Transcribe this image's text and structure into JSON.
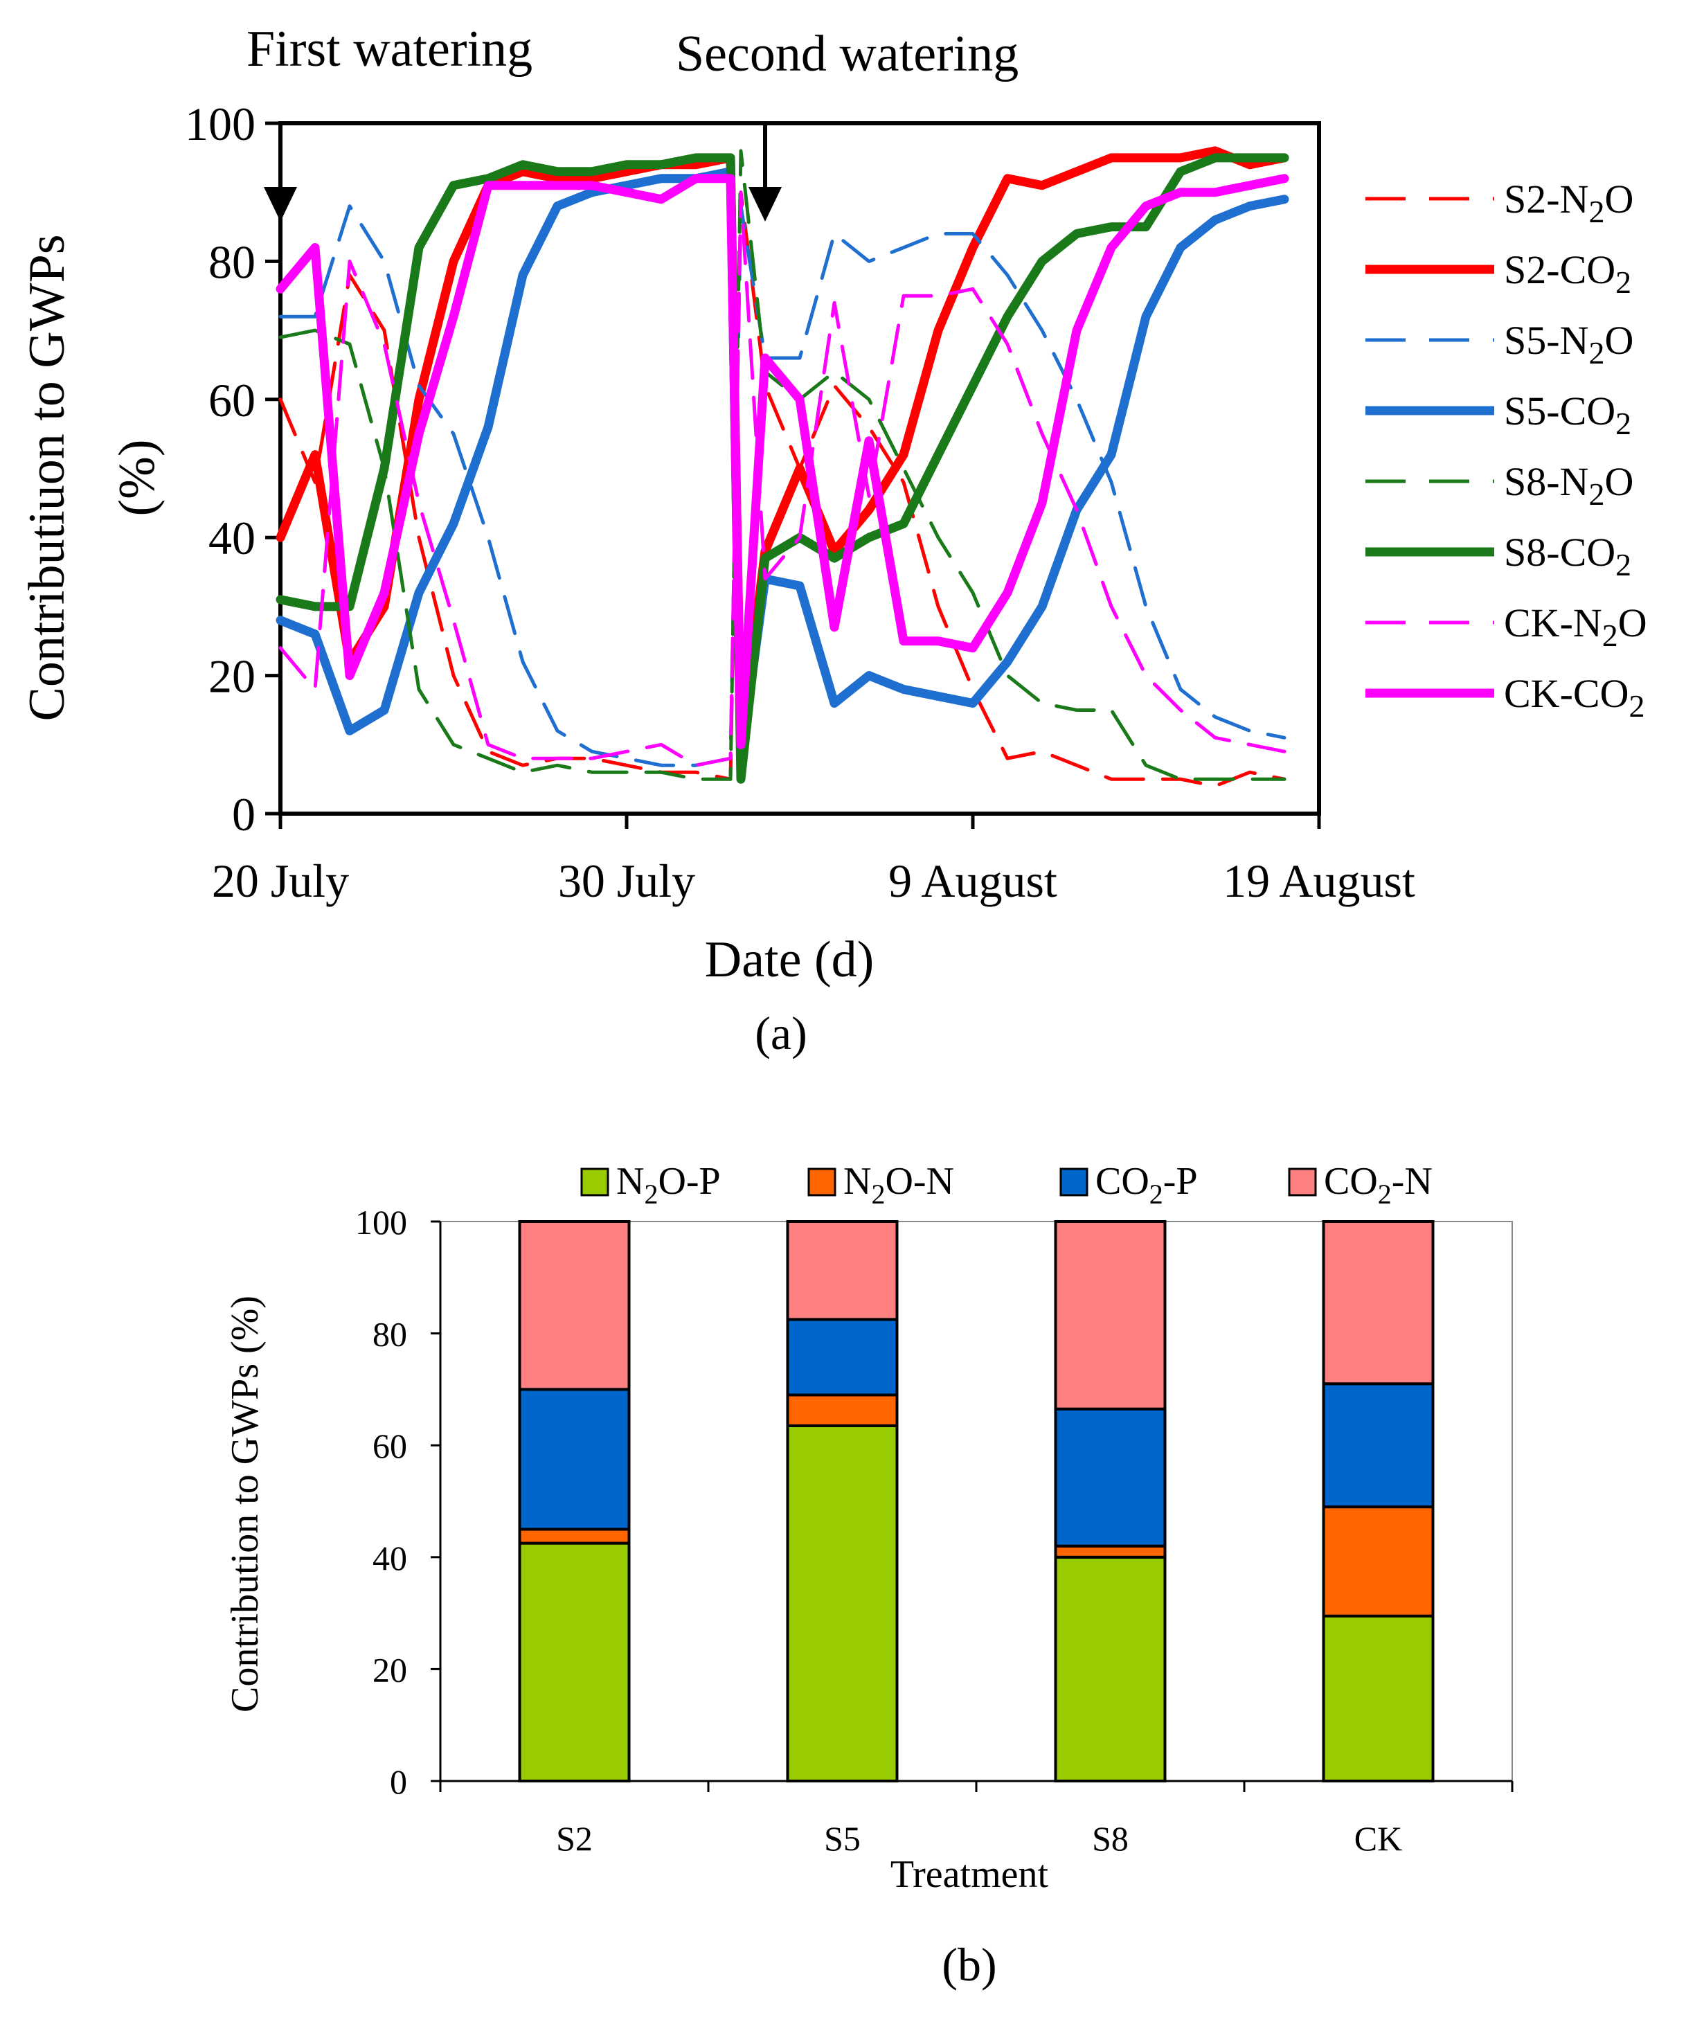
{
  "figure": {
    "caption_a": "(a)",
    "caption_b": "(b)"
  },
  "chart_data": [
    {
      "type": "line",
      "title": "",
      "xlabel": "Date (d)",
      "ylabel_line1": "Contributiuon to GWPs",
      "ylabel_line2": "(%)",
      "ylim": [
        0,
        100
      ],
      "yticks": [
        0,
        20,
        40,
        60,
        80,
        100
      ],
      "xlim": [
        0,
        30
      ],
      "xticks": [
        {
          "value": 0,
          "label": "20 July"
        },
        {
          "value": 10,
          "label": "30 July"
        },
        {
          "value": 20,
          "label": "9 August"
        },
        {
          "value": 30,
          "label": "19 August"
        }
      ],
      "annotations": [
        {
          "text": "First watering",
          "x": 0
        },
        {
          "text": "Second watering",
          "x": 14
        }
      ],
      "legend": "right",
      "series": [
        {
          "name": "S2-N2O",
          "label_main": "S2-N",
          "label_sub": "2",
          "label_tail": "O",
          "color": "#ff0000",
          "style": "dashed",
          "weight": "thin",
          "x": [
            0,
            1,
            2,
            3,
            4,
            5,
            6,
            7,
            8,
            9,
            10,
            11,
            12,
            13,
            13.3,
            14,
            15,
            16,
            17,
            18,
            19,
            20,
            21,
            22,
            23,
            24,
            25,
            26,
            27,
            28,
            29
          ],
          "y": [
            60,
            48,
            78,
            70,
            40,
            20,
            9,
            7,
            8,
            8,
            7,
            6,
            6,
            5,
            90,
            62,
            50,
            62,
            56,
            48,
            30,
            18,
            8,
            9,
            7,
            5,
            5,
            5,
            4,
            6,
            5
          ]
        },
        {
          "name": "S2-CO2",
          "label_main": "S2-CO",
          "label_sub": "2",
          "label_tail": "",
          "color": "#ff0000",
          "style": "solid",
          "weight": "thick",
          "x": [
            0,
            1,
            2,
            3,
            4,
            5,
            6,
            7,
            8,
            9,
            10,
            11,
            12,
            13,
            13.3,
            14,
            15,
            16,
            17,
            18,
            19,
            20,
            21,
            22,
            23,
            24,
            25,
            26,
            27,
            28,
            29
          ],
          "y": [
            40,
            52,
            22,
            30,
            60,
            80,
            91,
            93,
            92,
            92,
            93,
            94,
            94,
            95,
            10,
            38,
            50,
            38,
            44,
            52,
            70,
            82,
            92,
            91,
            93,
            95,
            95,
            95,
            96,
            94,
            95
          ]
        },
        {
          "name": "S5-N2O",
          "label_main": "S5-N",
          "label_sub": "2",
          "label_tail": "O",
          "color": "#1e6fd0",
          "style": "dashed",
          "weight": "thin",
          "x": [
            0,
            1,
            2,
            3,
            4,
            5,
            6,
            7,
            8,
            9,
            10,
            11,
            12,
            13,
            13.3,
            14,
            15,
            16,
            17,
            18,
            19,
            20,
            21,
            22,
            23,
            24,
            25,
            26,
            27,
            28,
            29
          ],
          "y": [
            72,
            72,
            88,
            80,
            62,
            55,
            40,
            22,
            12,
            9,
            8,
            7,
            7,
            8,
            88,
            66,
            66,
            84,
            80,
            82,
            84,
            84,
            78,
            70,
            60,
            48,
            30,
            18,
            14,
            12,
            11
          ]
        },
        {
          "name": "S5-CO2",
          "label_main": "S5-CO",
          "label_sub": "2",
          "label_tail": "",
          "color": "#1e6fd0",
          "style": "solid",
          "weight": "thick",
          "x": [
            0,
            1,
            2,
            3,
            4,
            5,
            6,
            7,
            8,
            9,
            10,
            11,
            12,
            13,
            13.3,
            14,
            15,
            16,
            17,
            18,
            19,
            20,
            21,
            22,
            23,
            24,
            25,
            26,
            27,
            28,
            29
          ],
          "y": [
            28,
            26,
            12,
            15,
            32,
            42,
            56,
            78,
            88,
            90,
            91,
            92,
            92,
            93,
            8,
            34,
            33,
            16,
            20,
            18,
            17,
            16,
            22,
            30,
            44,
            52,
            72,
            82,
            86,
            88,
            89
          ]
        },
        {
          "name": "S8-N2O",
          "label_main": "S8-N",
          "label_sub": "2",
          "label_tail": "O",
          "color": "#1a7a1a",
          "style": "dashed",
          "weight": "thin",
          "x": [
            0,
            1,
            2,
            3,
            4,
            5,
            6,
            7,
            8,
            9,
            10,
            11,
            12,
            13,
            13.3,
            14,
            15,
            16,
            17,
            18,
            19,
            20,
            21,
            22,
            23,
            24,
            25,
            26,
            27,
            28,
            29
          ],
          "y": [
            69,
            70,
            68,
            50,
            18,
            10,
            8,
            6,
            7,
            6,
            6,
            6,
            5,
            5,
            96,
            64,
            60,
            64,
            60,
            50,
            40,
            32,
            20,
            16,
            15,
            15,
            7,
            5,
            5,
            5,
            5
          ]
        },
        {
          "name": "S8-CO2",
          "label_main": "S8-CO",
          "label_sub": "2",
          "label_tail": "",
          "color": "#1a7a1a",
          "style": "solid",
          "weight": "thick",
          "x": [
            0,
            1,
            2,
            3,
            4,
            5,
            6,
            7,
            8,
            9,
            10,
            11,
            12,
            13,
            13.3,
            14,
            15,
            16,
            17,
            18,
            19,
            20,
            21,
            22,
            23,
            24,
            25,
            26,
            27,
            28,
            29
          ],
          "y": [
            31,
            30,
            30,
            50,
            82,
            91,
            92,
            94,
            93,
            93,
            94,
            94,
            95,
            95,
            5,
            37,
            40,
            37,
            40,
            42,
            52,
            62,
            72,
            80,
            84,
            85,
            85,
            93,
            95,
            95,
            95
          ]
        },
        {
          "name": "CK-N2O",
          "label_main": "CK-N",
          "label_sub": "2",
          "label_tail": "O",
          "color": "#ff00ff",
          "style": "dashed",
          "weight": "thin",
          "x": [
            0,
            1,
            2,
            3,
            4,
            5,
            6,
            7,
            8,
            9,
            10,
            11,
            12,
            13,
            13.3,
            14,
            15,
            16,
            17,
            18,
            19,
            20,
            21,
            22,
            23,
            24,
            25,
            26,
            27,
            28,
            29
          ],
          "y": [
            24,
            18,
            80,
            68,
            45,
            28,
            10,
            8,
            8,
            8,
            9,
            10,
            7,
            8,
            90,
            34,
            40,
            74,
            46,
            75,
            75,
            76,
            68,
            55,
            44,
            30,
            20,
            15,
            11,
            10,
            9
          ]
        },
        {
          "name": "CK-CO2",
          "label_main": "CK-CO",
          "label_sub": "2",
          "label_tail": "",
          "color": "#ff00ff",
          "style": "solid",
          "weight": "thick",
          "x": [
            0,
            1,
            2,
            3,
            4,
            5,
            6,
            7,
            8,
            9,
            10,
            11,
            12,
            13,
            13.3,
            14,
            15,
            16,
            17,
            18,
            19,
            20,
            21,
            22,
            23,
            24,
            25,
            26,
            27,
            28,
            29
          ],
          "y": [
            76,
            82,
            20,
            32,
            55,
            72,
            91,
            91,
            91,
            91,
            90,
            89,
            92,
            92,
            10,
            66,
            60,
            27,
            54,
            25,
            25,
            24,
            32,
            45,
            70,
            82,
            88,
            90,
            90,
            91,
            92
          ]
        }
      ]
    },
    {
      "type": "bar",
      "stacked": true,
      "title": "",
      "xlabel": "Treatment",
      "ylabel": "Contribution to GWPs (%)",
      "ylim": [
        0,
        100
      ],
      "yticks": [
        0,
        20,
        40,
        60,
        80,
        100
      ],
      "legend": "top",
      "categories": [
        "S2",
        "S5",
        "S8",
        "CK"
      ],
      "series": [
        {
          "name": "N2O-P",
          "label_main": "N",
          "label_sub": "2",
          "label_tail": "O-P",
          "color": "#99cc00",
          "values": [
            42.5,
            63.5,
            40.0,
            29.5
          ]
        },
        {
          "name": "N2O-N",
          "label_main": "N",
          "label_sub": "2",
          "label_tail": "O-N",
          "color": "#ff6600",
          "values": [
            2.5,
            5.5,
            2.0,
            19.5
          ]
        },
        {
          "name": "CO2-P",
          "label_main": "CO",
          "label_sub": "2",
          "label_tail": "-P",
          "color": "#0066cc",
          "values": [
            25.0,
            13.5,
            24.5,
            22.0
          ]
        },
        {
          "name": "CO2-N",
          "label_main": "CO",
          "label_sub": "2",
          "label_tail": "-N",
          "color": "#ff8080",
          "values": [
            30.0,
            17.5,
            33.5,
            29.0
          ]
        }
      ]
    }
  ]
}
